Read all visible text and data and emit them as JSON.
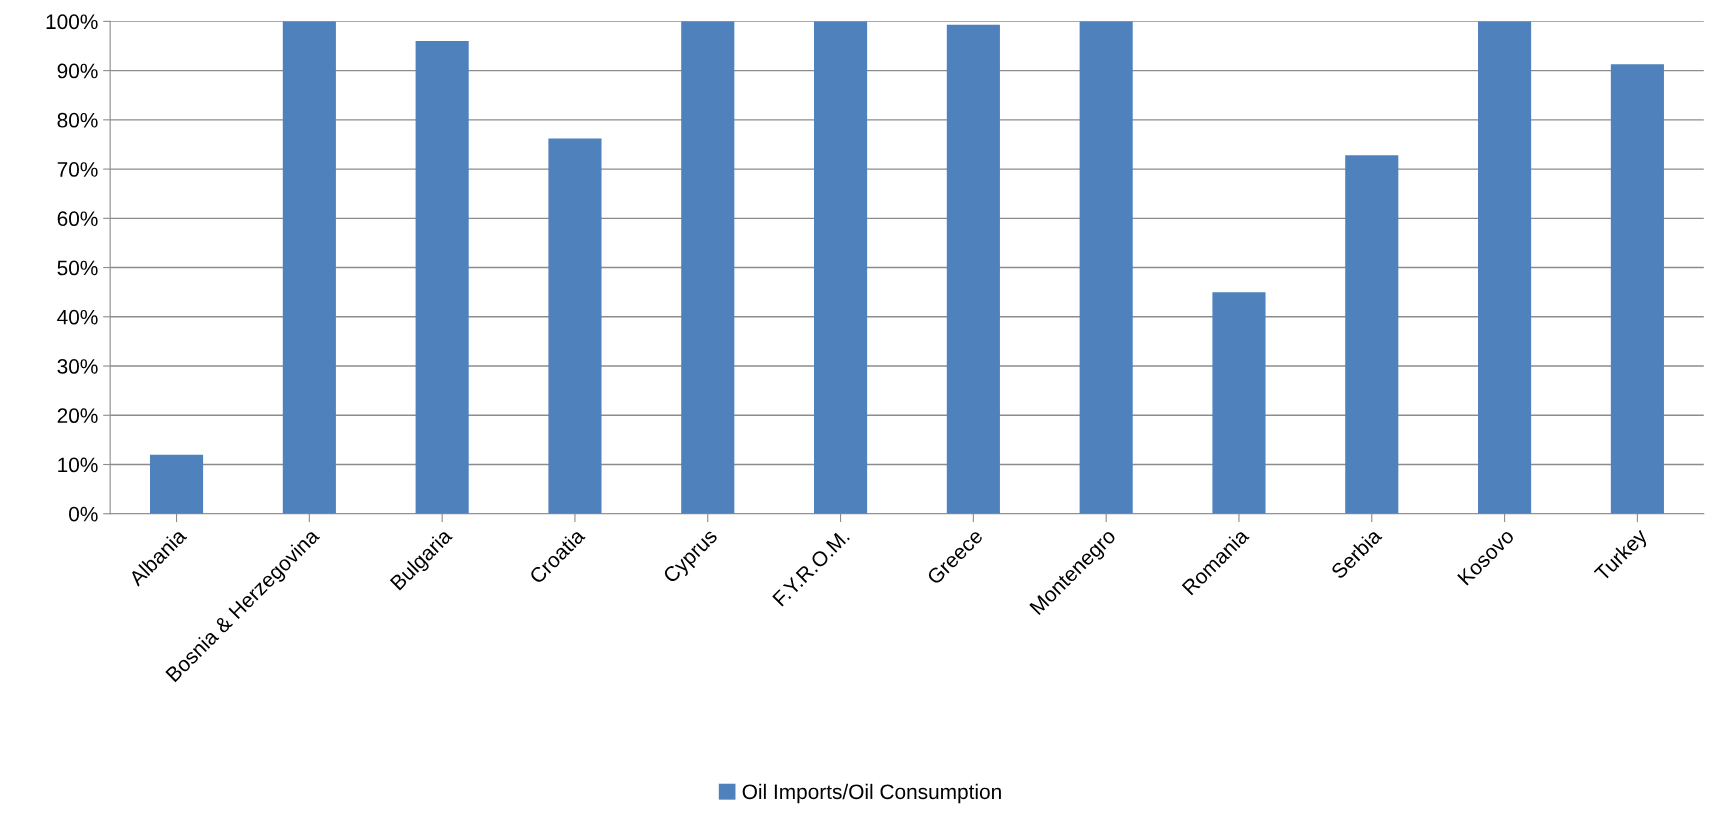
{
  "chart_data": {
    "type": "bar",
    "categories": [
      "Albania",
      "Bosnia & Herzegovina",
      "Bulgaria",
      "Croatia",
      "Cyprus",
      "F.Y.R.O.M.",
      "Greece",
      "Montenegro",
      "Romania",
      "Serbia",
      "Kosovo",
      "Turkey"
    ],
    "series": [
      {
        "name": "Oil Imports/Oil Consumption",
        "color": "#4f81bd",
        "values": [
          12.0,
          100,
          96.0,
          76.2,
          100,
          100,
          99.3,
          100,
          45.0,
          72.8,
          100,
          91.3
        ]
      }
    ],
    "ylim": [
      0,
      100
    ],
    "yticks": [
      {
        "value": 0,
        "label": "0%"
      },
      {
        "value": 10,
        "label": "10%"
      },
      {
        "value": 20,
        "label": "20%"
      },
      {
        "value": 30,
        "label": "30%"
      },
      {
        "value": 40,
        "label": "40%"
      },
      {
        "value": 50,
        "label": "50%"
      },
      {
        "value": 60,
        "label": "60%"
      },
      {
        "value": 70,
        "label": "70%"
      },
      {
        "value": 80,
        "label": "80%"
      },
      {
        "value": 90,
        "label": "90%"
      },
      {
        "value": 100,
        "label": "100%"
      }
    ],
    "grid": "y",
    "legend": "bottom"
  }
}
